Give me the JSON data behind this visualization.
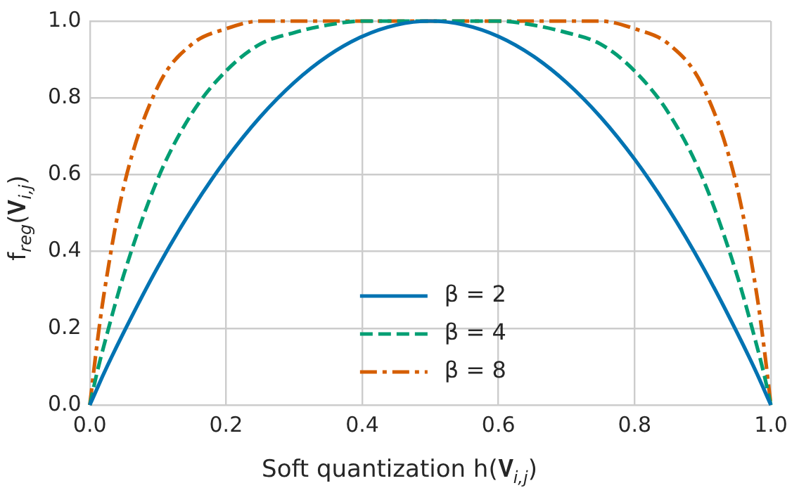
{
  "chart_data": {
    "type": "line",
    "xlabel": "Soft quantization h(𝐕$_{i,j}$)",
    "ylabel": "f$_{reg}$(𝐕$_{i,j}$)",
    "x": [
      0,
      0.01,
      0.02,
      0.05,
      0.1,
      0.15,
      0.2,
      0.25,
      0.3,
      0.35,
      0.4,
      0.45,
      0.5,
      0.55,
      0.6,
      0.65,
      0.7,
      0.75,
      0.8,
      0.85,
      0.9,
      0.95,
      0.98,
      0.99,
      1
    ],
    "series": [
      {
        "name": "β = 2",
        "color": "#0173b2",
        "line_style": "solid",
        "values": [
          0,
          0.04,
          0.08,
          0.19,
          0.36,
          0.51,
          0.64,
          0.75,
          0.84,
          0.91,
          0.96,
          0.99,
          1,
          0.99,
          0.96,
          0.91,
          0.84,
          0.75,
          0.64,
          0.51,
          0.36,
          0.19,
          0.08,
          0.04,
          0
        ]
      },
      {
        "name": "β = 4",
        "color": "#029e73",
        "line_style": "dashed",
        "values": [
          0,
          0.08,
          0.15,
          0.34,
          0.59,
          0.76,
          0.87,
          0.94,
          0.97,
          0.99,
          1,
          1,
          1,
          1,
          1,
          0.99,
          0.97,
          0.94,
          0.87,
          0.76,
          0.59,
          0.34,
          0.15,
          0.08,
          0
        ]
      },
      {
        "name": "β = 8",
        "color": "#d55e00",
        "line_style": "dashdot",
        "values": [
          0,
          0.15,
          0.28,
          0.57,
          0.83,
          0.94,
          0.98,
          1,
          1,
          1,
          1,
          1,
          1,
          1,
          1,
          1,
          1,
          1,
          0.98,
          0.94,
          0.83,
          0.57,
          0.28,
          0.15,
          0
        ]
      }
    ],
    "xlim": [
      0,
      1
    ],
    "xticks": [
      {
        "value": 0,
        "label": "0.0"
      },
      0.2,
      0.4,
      0.6,
      0.8,
      {
        "value": 1,
        "label": "1.0"
      }
    ],
    "ylim": [
      0,
      1
    ],
    "yticks": [
      {
        "value": 0,
        "label": "0.0"
      },
      0.2,
      0.4,
      0.6,
      0.8,
      {
        "value": 1,
        "label": "1.0"
      }
    ],
    "grid": true,
    "legend": "bottom"
  }
}
